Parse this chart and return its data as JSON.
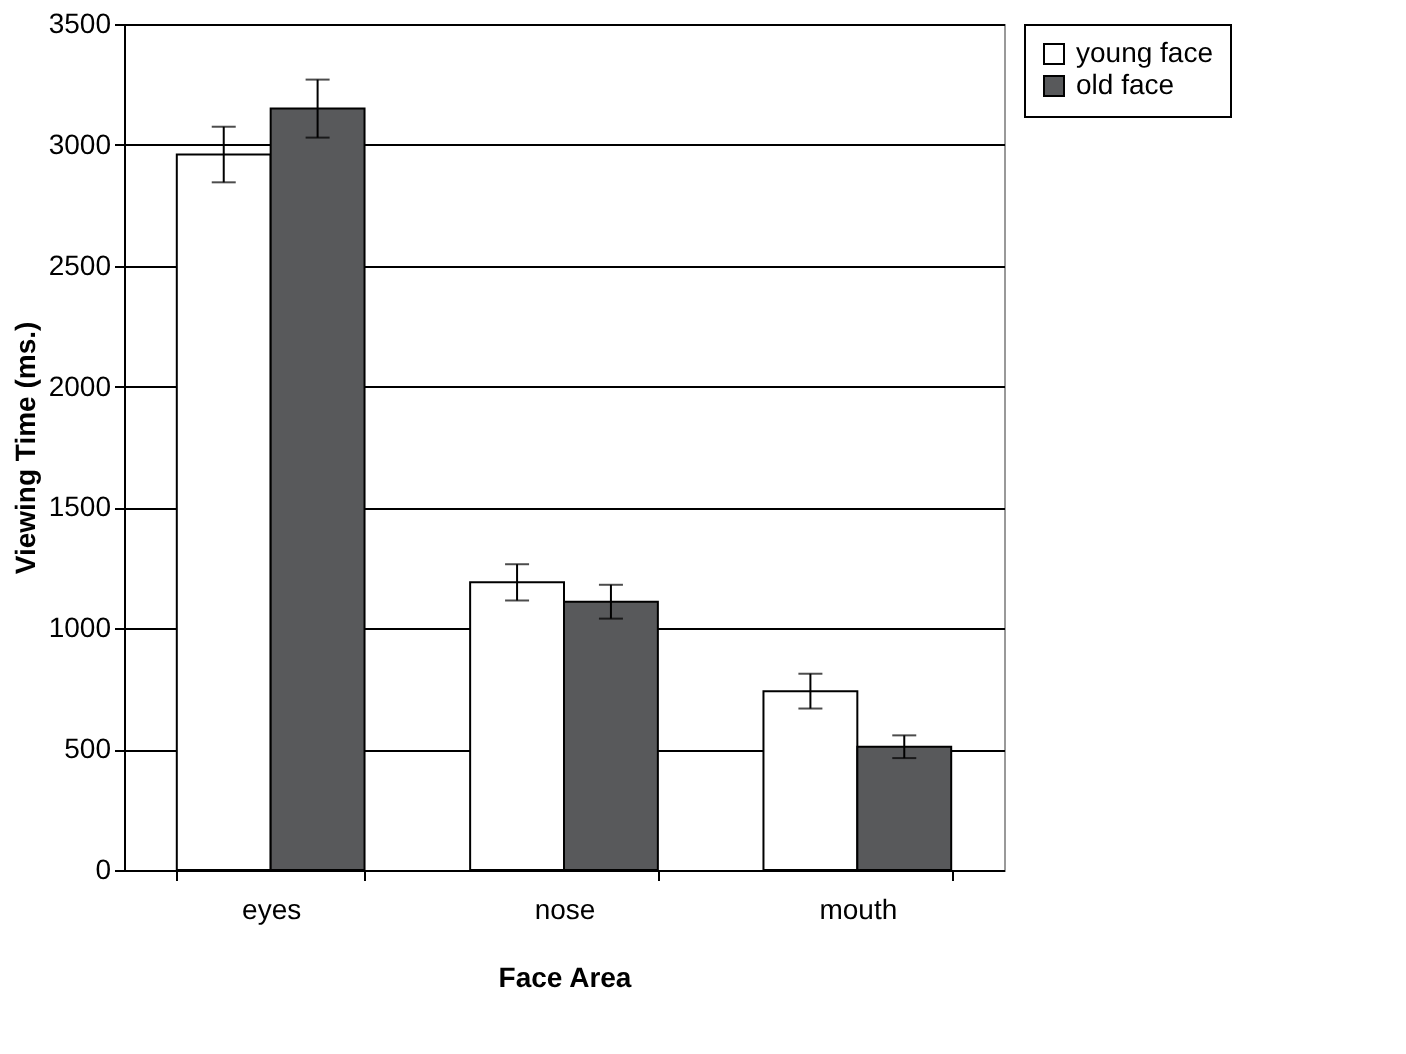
{
  "chart_data": {
    "type": "bar",
    "xlabel": "Face Area",
    "ylabel": "Viewing Time (ms.)",
    "categories": [
      "eyes",
      "nose",
      "mouth"
    ],
    "series": [
      {
        "name": "young face",
        "color": "#ffffff",
        "values": [
          2960,
          1190,
          740
        ],
        "errors": [
          115,
          75,
          72
        ]
      },
      {
        "name": "old face",
        "color": "#58595b",
        "values": [
          3150,
          1110,
          510
        ],
        "errors": [
          120,
          70,
          47
        ]
      }
    ],
    "ylim": [
      0,
      3500
    ],
    "yticks": [
      0,
      500,
      1000,
      1500,
      2000,
      2500,
      3000,
      3500
    ],
    "grid": "y",
    "legend": "top right"
  }
}
